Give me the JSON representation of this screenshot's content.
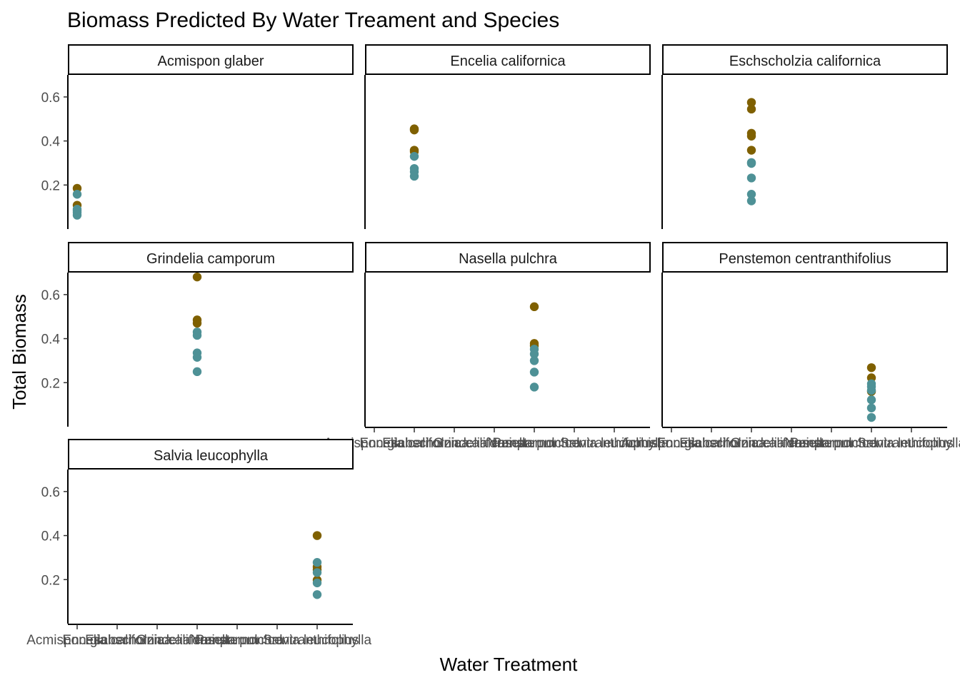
{
  "chart_data": {
    "type": "scatter",
    "title": "Biomass Predicted By Water Treament and Species",
    "xlabel": "Water Treatment",
    "ylabel": "Total Biomass",
    "ylim": [
      0,
      0.7
    ],
    "y_ticks": [
      0.2,
      0.4,
      0.6
    ],
    "y_tick_labels": [
      "0.2",
      "0.4",
      "0.6"
    ],
    "grid": false,
    "categories": [
      "Acmispon glaber",
      "Encelia californica",
      "Eschscholzia californica",
      "Grindelia camporum",
      "Nasella pulchra",
      "Penstemon centranthifolius",
      "Salvia leucophylla"
    ],
    "x_tick_labels": [
      "Acmispon glaber",
      "Encelia californica",
      "Eschscholzia californica",
      "Grindelia camporum",
      "Nasella pulchra",
      "Penstemon centranthifolius",
      "Salvia leucophylla"
    ],
    "colors": {
      "brown": "#7f6000",
      "teal": "#4e9196"
    },
    "panels": [
      {
        "label": "Acmispon glaber",
        "category_index": 0,
        "points": [
          {
            "y": 0.185,
            "color": "brown"
          },
          {
            "y": 0.108,
            "color": "brown"
          },
          {
            "y": 0.158,
            "color": "teal"
          },
          {
            "y": 0.09,
            "color": "teal"
          },
          {
            "y": 0.083,
            "color": "teal"
          },
          {
            "y": 0.075,
            "color": "teal"
          },
          {
            "y": 0.063,
            "color": "teal"
          }
        ]
      },
      {
        "label": "Encelia californica",
        "category_index": 1,
        "points": [
          {
            "y": 0.455,
            "color": "brown"
          },
          {
            "y": 0.45,
            "color": "brown"
          },
          {
            "y": 0.358,
            "color": "brown"
          },
          {
            "y": 0.352,
            "color": "brown"
          },
          {
            "y": 0.33,
            "color": "teal"
          },
          {
            "y": 0.275,
            "color": "teal"
          },
          {
            "y": 0.26,
            "color": "teal"
          },
          {
            "y": 0.24,
            "color": "teal"
          }
        ]
      },
      {
        "label": "Eschscholzia californica",
        "category_index": 2,
        "points": [
          {
            "y": 0.575,
            "color": "brown"
          },
          {
            "y": 0.545,
            "color": "brown"
          },
          {
            "y": 0.435,
            "color": "brown"
          },
          {
            "y": 0.422,
            "color": "brown"
          },
          {
            "y": 0.358,
            "color": "brown"
          },
          {
            "y": 0.302,
            "color": "teal"
          },
          {
            "y": 0.298,
            "color": "teal"
          },
          {
            "y": 0.232,
            "color": "teal"
          },
          {
            "y": 0.158,
            "color": "teal"
          },
          {
            "y": 0.128,
            "color": "teal"
          }
        ]
      },
      {
        "label": "Grindelia camporum",
        "category_index": 3,
        "points": [
          {
            "y": 0.68,
            "color": "brown"
          },
          {
            "y": 0.485,
            "color": "brown"
          },
          {
            "y": 0.47,
            "color": "brown"
          },
          {
            "y": 0.43,
            "color": "teal"
          },
          {
            "y": 0.415,
            "color": "teal"
          },
          {
            "y": 0.335,
            "color": "teal"
          },
          {
            "y": 0.315,
            "color": "teal"
          },
          {
            "y": 0.25,
            "color": "teal"
          }
        ]
      },
      {
        "label": "Nasella pulchra",
        "category_index": 4,
        "points": [
          {
            "y": 0.545,
            "color": "brown"
          },
          {
            "y": 0.378,
            "color": "brown"
          },
          {
            "y": 0.368,
            "color": "brown"
          },
          {
            "y": 0.352,
            "color": "teal"
          },
          {
            "y": 0.33,
            "color": "teal"
          },
          {
            "y": 0.3,
            "color": "teal"
          },
          {
            "y": 0.248,
            "color": "teal"
          },
          {
            "y": 0.18,
            "color": "teal"
          }
        ]
      },
      {
        "label": "Penstemon centranthifolius",
        "category_index": 5,
        "points": [
          {
            "y": 0.268,
            "color": "brown"
          },
          {
            "y": 0.222,
            "color": "brown"
          },
          {
            "y": 0.16,
            "color": "brown"
          },
          {
            "y": 0.195,
            "color": "teal"
          },
          {
            "y": 0.182,
            "color": "teal"
          },
          {
            "y": 0.165,
            "color": "teal"
          },
          {
            "y": 0.122,
            "color": "teal"
          },
          {
            "y": 0.085,
            "color": "teal"
          },
          {
            "y": 0.042,
            "color": "teal"
          }
        ]
      },
      {
        "label": "Salvia leucophylla",
        "category_index": 6,
        "points": [
          {
            "y": 0.4,
            "color": "brown"
          },
          {
            "y": 0.258,
            "color": "brown"
          },
          {
            "y": 0.245,
            "color": "brown"
          },
          {
            "y": 0.198,
            "color": "brown"
          },
          {
            "y": 0.278,
            "color": "teal"
          },
          {
            "y": 0.232,
            "color": "teal"
          },
          {
            "y": 0.185,
            "color": "teal"
          },
          {
            "y": 0.132,
            "color": "teal"
          }
        ]
      }
    ]
  }
}
